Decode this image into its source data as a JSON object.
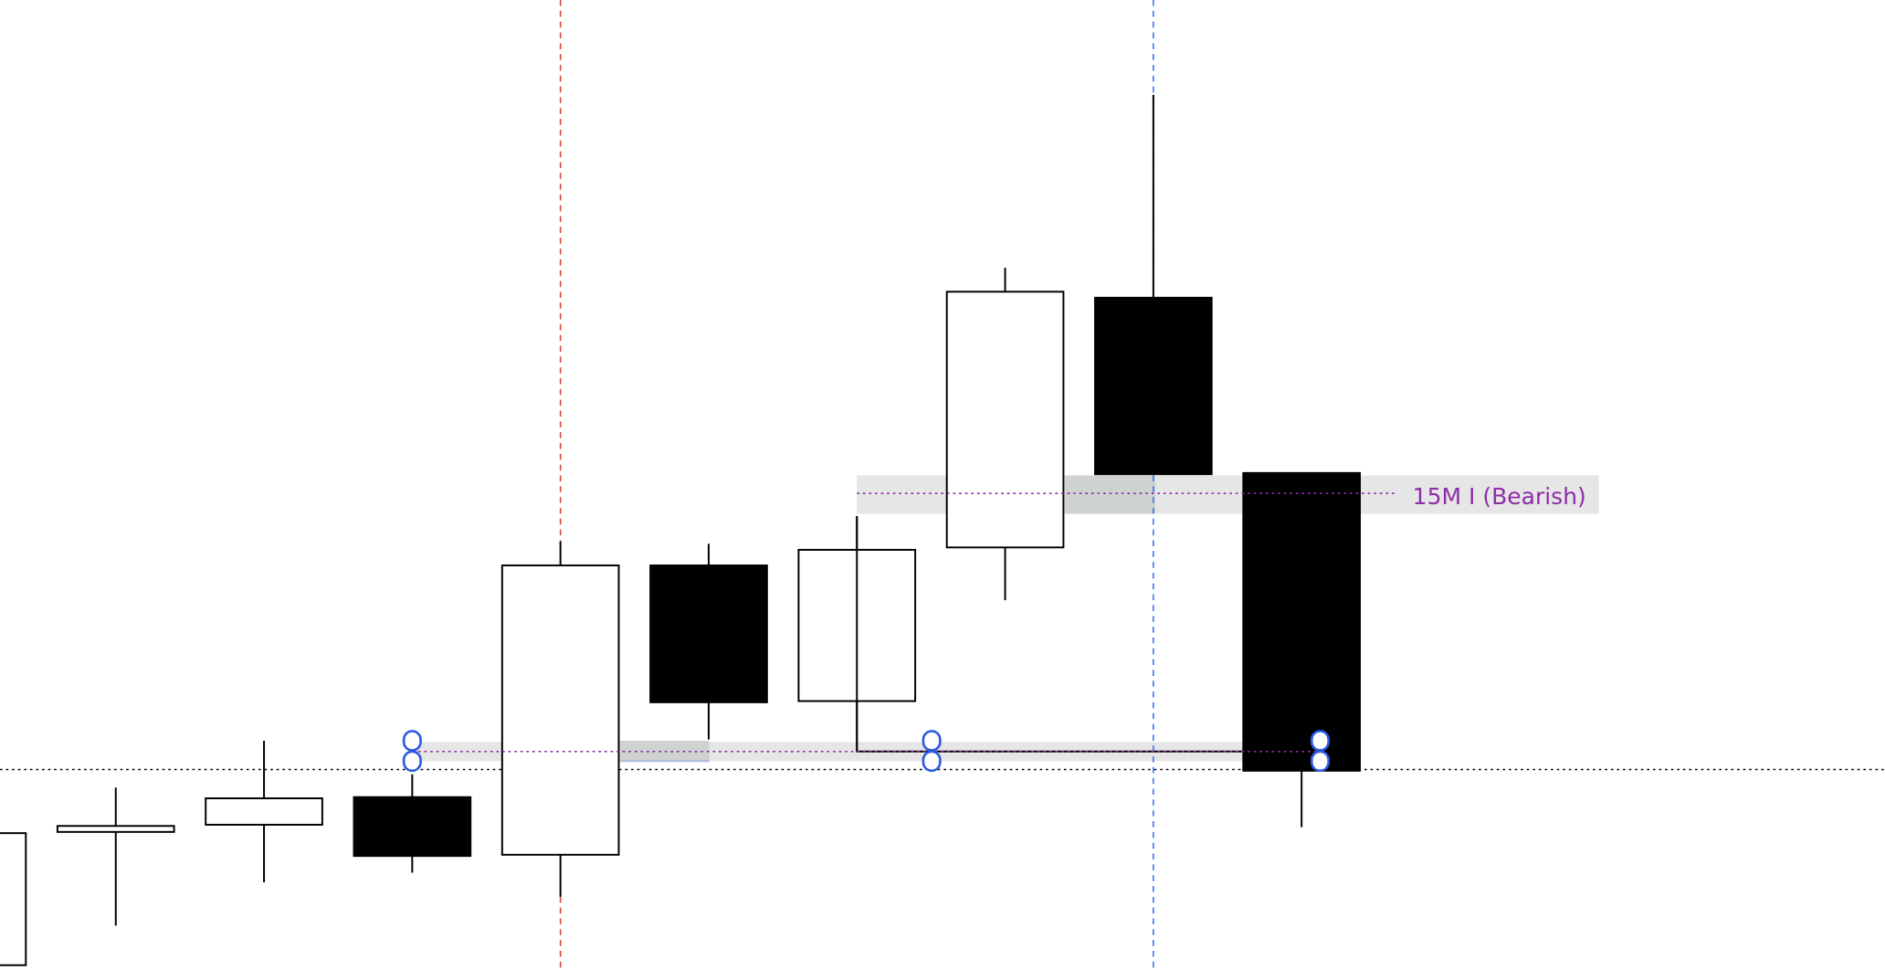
{
  "chart_data": {
    "type": "candlestick",
    "title": "",
    "xlabel": "",
    "ylabel": "",
    "grid": false,
    "colors": {
      "bullish": "#ffffff",
      "bearish": "#000000",
      "outline": "#000000",
      "zone_label": "#8e2da8",
      "zone_fill": "#e6e6e6",
      "zone_overlap": "#ced3cf",
      "handle": "#2c5be0",
      "session_line_red": "#d9443a",
      "session_line_blue": "#3d6ff0"
    },
    "candles": [
      {
        "open": 4,
        "high": 114,
        "low": 4,
        "close": 114
      },
      {
        "open": 115,
        "high": 152,
        "low": 37,
        "close": 120
      },
      {
        "open": 121,
        "high": 191,
        "low": 73,
        "close": 143
      },
      {
        "open": 144,
        "high": 163,
        "low": 81,
        "close": 95
      },
      {
        "open": 96,
        "high": 357,
        "low": 61,
        "close": 337
      },
      {
        "open": 337,
        "high": 355,
        "low": 192,
        "close": 223
      },
      {
        "open": 224,
        "high": 378,
        "low": 182,
        "close": 350
      },
      {
        "open": 352,
        "high": 585,
        "low": 308,
        "close": 565
      },
      {
        "open": 560,
        "high": 729,
        "low": 413,
        "close": 413
      },
      {
        "open": 414,
        "high": 414,
        "low": 119,
        "close": 166
      }
    ],
    "reference_level": 167,
    "vertical_markers": [
      {
        "candle_index": 4,
        "style": "dashed",
        "color": "red"
      },
      {
        "candle_index": 8,
        "style": "dashed",
        "color": "blue"
      }
    ],
    "zones": [
      {
        "label": "",
        "level": 182,
        "from_index": 3,
        "to_index": 10
      },
      {
        "label": "15M I (Bearish)",
        "level": 397,
        "from_index": 6,
        "to_index": 11
      }
    ]
  }
}
